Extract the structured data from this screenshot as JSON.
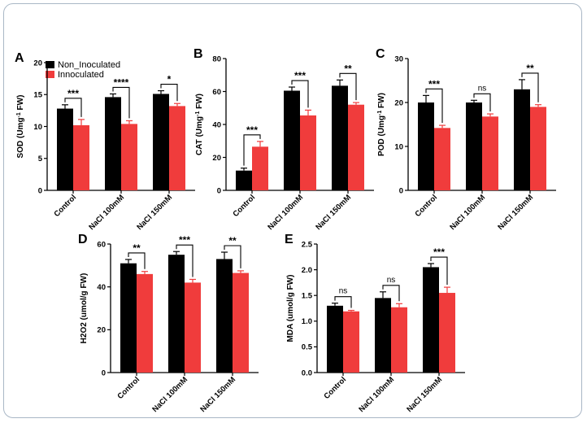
{
  "legend": {
    "series": [
      {
        "name": "Non_Inoculated",
        "color": "#000000"
      },
      {
        "name": "Innoculated",
        "color": "#f03c3c"
      }
    ]
  },
  "chart_data": [
    {
      "type": "bar",
      "panel": "A",
      "ylabel": "SOD (Umg",
      "ysup": "-1",
      "ysuffix": " FW)",
      "ylim": [
        0,
        20
      ],
      "yticks": [
        0,
        5,
        10,
        15,
        20
      ],
      "categories": [
        "Control",
        "NaCl 100mM",
        "NaCl 150mM"
      ],
      "series": [
        {
          "name": "Non_Inoculated",
          "values": [
            12.8,
            14.6,
            15.1
          ],
          "errors": [
            0.6,
            0.5,
            0.5
          ]
        },
        {
          "name": "Innoculated",
          "values": [
            10.2,
            10.4,
            13.2
          ],
          "errors": [
            0.9,
            0.5,
            0.4
          ]
        }
      ],
      "significance": [
        "***",
        "****",
        "*"
      ]
    },
    {
      "type": "bar",
      "panel": "B",
      "ylabel": "CAT (Umg",
      "ysup": "-1",
      "ysuffix": " FW)",
      "ylim": [
        0,
        80
      ],
      "yticks": [
        0,
        20,
        40,
        60,
        80
      ],
      "categories": [
        "Control",
        "NaCl 100mM",
        "NaCl 150mM"
      ],
      "series": [
        {
          "name": "Non_Inoculated",
          "values": [
            12,
            60.5,
            63.5
          ],
          "errors": [
            1.5,
            2.2,
            3.5
          ]
        },
        {
          "name": "Innoculated",
          "values": [
            26.5,
            45.5,
            52
          ],
          "errors": [
            3.2,
            3.2,
            1.3
          ]
        }
      ],
      "significance": [
        "***",
        "***",
        "**"
      ]
    },
    {
      "type": "bar",
      "panel": "C",
      "ylabel": "POD (Umg",
      "ysup": "-1",
      "ysuffix": " FW)",
      "ylim": [
        0,
        30
      ],
      "yticks": [
        0,
        10,
        20,
        30
      ],
      "categories": [
        "Control",
        "NaCl 100mM",
        "NaCl 150mM"
      ],
      "series": [
        {
          "name": "Non_Inoculated",
          "values": [
            20,
            20,
            23
          ],
          "errors": [
            1.6,
            0.5,
            2.2
          ]
        },
        {
          "name": "Innoculated",
          "values": [
            14.2,
            16.8,
            19
          ],
          "errors": [
            0.6,
            0.6,
            0.5
          ]
        }
      ],
      "significance": [
        "***",
        "ns",
        "**"
      ]
    },
    {
      "type": "bar",
      "panel": "D",
      "ylabel": "H2O2 (umol/g FW)",
      "ysup": "",
      "ysuffix": "",
      "ylim": [
        0,
        60
      ],
      "yticks": [
        0,
        20,
        40,
        60
      ],
      "categories": [
        "Control",
        "NaCl 100mM",
        "NaCl 150mM"
      ],
      "series": [
        {
          "name": "Non_Inoculated",
          "values": [
            51,
            55,
            53
          ],
          "errors": [
            1.8,
            1.5,
            3.2
          ]
        },
        {
          "name": "Innoculated",
          "values": [
            46,
            42,
            46.5
          ],
          "errors": [
            1.2,
            1.5,
            1.0
          ]
        }
      ],
      "significance": [
        "**",
        "***",
        "**"
      ]
    },
    {
      "type": "bar",
      "panel": "E",
      "ylabel": "MDA (umol/g FW)",
      "ysup": "",
      "ysuffix": "",
      "ylim": [
        0,
        2.5
      ],
      "yticks": [
        "0.0",
        "0.5",
        "1.0",
        "1.5",
        "2.0",
        "2.5"
      ],
      "categories": [
        "Control",
        "NaCl 100mM",
        "NaCl 150mM"
      ],
      "series": [
        {
          "name": "Non_Inoculated",
          "values": [
            1.3,
            1.45,
            2.05
          ],
          "errors": [
            0.05,
            0.12,
            0.07
          ]
        },
        {
          "name": "Innoculated",
          "values": [
            1.19,
            1.27,
            1.55
          ],
          "errors": [
            0.02,
            0.07,
            0.11
          ]
        }
      ],
      "significance": [
        "ns",
        "ns",
        "***"
      ]
    }
  ]
}
